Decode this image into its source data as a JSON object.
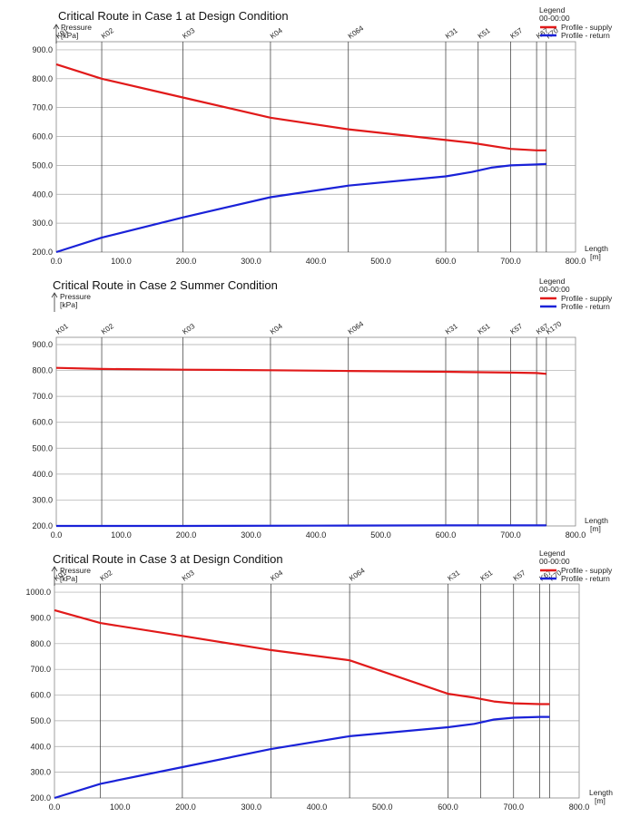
{
  "charts": [
    {
      "title": "Critical Route in Case 1 at Design Condition",
      "ylabel": "Pressure",
      "yunit": "[kPa]",
      "xlabel": "Length",
      "xunit": "[m]",
      "legend": {
        "title": "Legend",
        "subtitle": "00-00:00",
        "supply": "Profile - supply",
        "return": "Profile - return"
      },
      "xticks": [
        "0.0",
        "100.0",
        "200.0",
        "300.0",
        "400.0",
        "500.0",
        "600.0",
        "700.0",
        "800.0"
      ],
      "yticks": [
        "200.0",
        "300.0",
        "400.0",
        "500.0",
        "600.0",
        "700.0",
        "800.0",
        "900.0"
      ],
      "nodes": [
        "K01",
        "K02",
        "K03",
        "K04",
        "K064",
        "K31",
        "K51",
        "K57",
        "K67",
        "K70"
      ]
    },
    {
      "title": "Critical Route in Case 2 Summer Condition",
      "ylabel": "Pressure",
      "yunit": "[kPa]",
      "xlabel": "Length",
      "xunit": "[m]",
      "legend": {
        "title": "Legend",
        "subtitle": "00-00:00",
        "supply": "Profile - supply",
        "return": "Profile - return"
      },
      "xticks": [
        "0.0",
        "100.0",
        "200.0",
        "300.0",
        "400.0",
        "500.0",
        "600.0",
        "700.0",
        "800.0"
      ],
      "yticks": [
        "200.0",
        "300.0",
        "400.0",
        "500.0",
        "600.0",
        "700.0",
        "800.0",
        "900.0"
      ],
      "nodes": [
        "K01",
        "K02",
        "K03",
        "K04",
        "K064",
        "K31",
        "K51",
        "K57",
        "K67",
        "K170"
      ]
    },
    {
      "title": "Critical Route in Case 3 at Design Condition",
      "ylabel": "Pressure",
      "yunit": "[kPa]",
      "xlabel": "Length",
      "xunit": "[m]",
      "legend": {
        "title": "Legend",
        "subtitle": "00-00:00",
        "supply": "Profile - supply",
        "return": "Profile - return"
      },
      "xticks": [
        "0.0",
        "100.0",
        "200.0",
        "300.0",
        "400.0",
        "500.0",
        "600.0",
        "700.0",
        "800.0"
      ],
      "yticks": [
        "200.0",
        "300.0",
        "400.0",
        "500.0",
        "600.0",
        "700.0",
        "800.0",
        "900.0",
        "1000.0"
      ],
      "nodes": [
        "K01",
        "K02",
        "K03",
        "K04",
        "K064",
        "K31",
        "K51",
        "K57",
        "K67",
        "K70"
      ]
    }
  ],
  "chart_data": [
    {
      "type": "line",
      "title": "Critical Route in Case 1 at Design Condition",
      "xlim": [
        0,
        800
      ],
      "ylim": [
        200,
        900
      ],
      "node_x": [
        0,
        70,
        195,
        330,
        450,
        600,
        650,
        700,
        740,
        755
      ],
      "series": [
        {
          "name": "Profile - supply",
          "color": "#e11a1a",
          "x": [
            0,
            70,
            195,
            330,
            450,
            600,
            640,
            700,
            740,
            755
          ],
          "y": [
            850,
            800,
            735,
            665,
            625,
            588,
            578,
            557,
            552,
            552
          ]
        },
        {
          "name": "Profile - return",
          "color": "#1a22d8",
          "x": [
            0,
            70,
            195,
            330,
            450,
            600,
            640,
            670,
            700,
            740,
            755
          ],
          "y": [
            200,
            250,
            320,
            390,
            430,
            462,
            477,
            492,
            500,
            503,
            505
          ]
        }
      ]
    },
    {
      "type": "line",
      "title": "Critical Route in Case 2 Summer Condition",
      "xlim": [
        0,
        800
      ],
      "ylim": [
        200,
        900
      ],
      "node_x": [
        0,
        70,
        195,
        330,
        450,
        600,
        650,
        700,
        740,
        755
      ],
      "series": [
        {
          "name": "Profile - supply",
          "color": "#e11a1a",
          "x": [
            0,
            70,
            195,
            330,
            450,
            600,
            700,
            740,
            755
          ],
          "y": [
            810,
            806,
            803,
            801,
            798,
            795,
            792,
            790,
            787
          ]
        },
        {
          "name": "Profile - return",
          "color": "#1a22d8",
          "x": [
            0,
            195,
            400,
            600,
            755
          ],
          "y": [
            200,
            200,
            201,
            202,
            202
          ]
        }
      ]
    },
    {
      "type": "line",
      "title": "Critical Route in Case 3 at Design Condition",
      "xlim": [
        0,
        800
      ],
      "ylim": [
        200,
        1000
      ],
      "node_x": [
        0,
        70,
        195,
        330,
        450,
        600,
        650,
        700,
        740,
        755
      ],
      "series": [
        {
          "name": "Profile - supply",
          "color": "#e11a1a",
          "x": [
            0,
            70,
            195,
            330,
            450,
            600,
            640,
            670,
            700,
            740,
            755
          ],
          "y": [
            930,
            880,
            830,
            775,
            735,
            605,
            590,
            575,
            568,
            565,
            565
          ]
        },
        {
          "name": "Profile - return",
          "color": "#1a22d8",
          "x": [
            0,
            70,
            195,
            330,
            450,
            600,
            640,
            670,
            700,
            740,
            755
          ],
          "y": [
            200,
            255,
            320,
            390,
            440,
            475,
            488,
            505,
            512,
            515,
            515
          ]
        }
      ]
    }
  ]
}
